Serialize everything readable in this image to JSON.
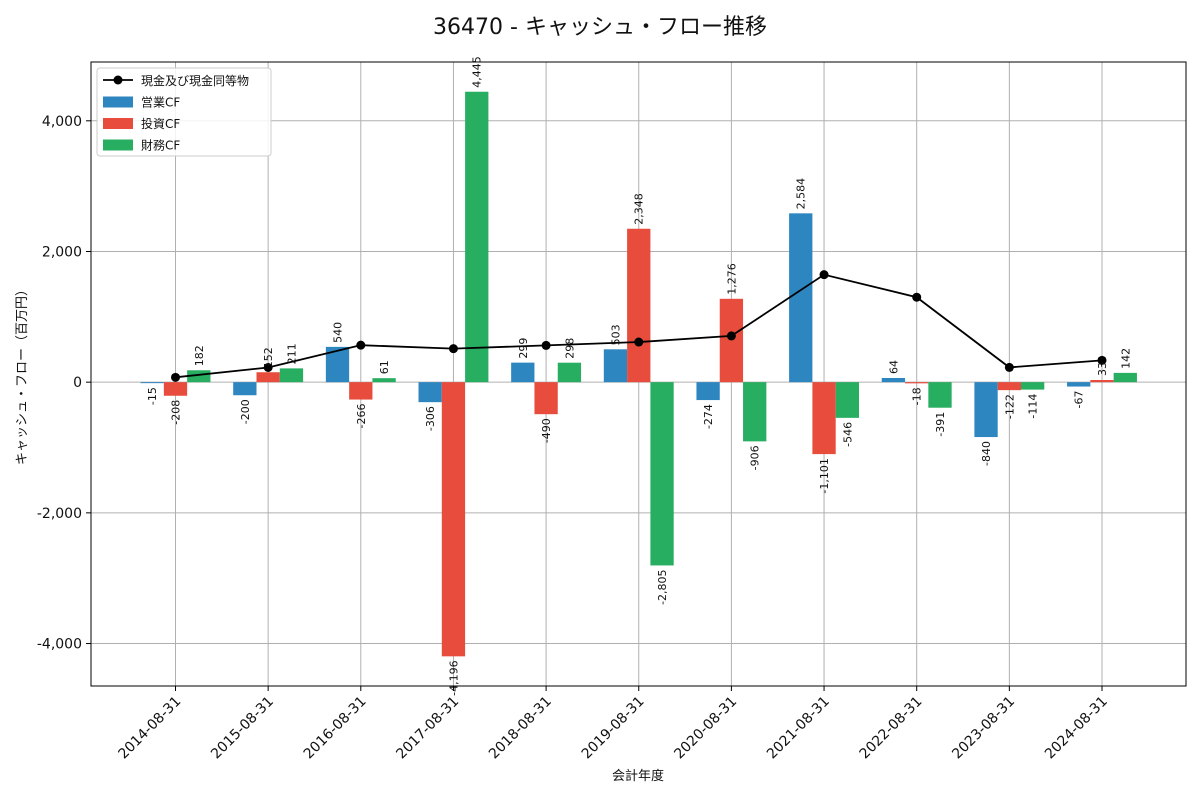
{
  "chart_data": {
    "type": "bar",
    "title": "36470 - キャッシュ・フロー推移",
    "xlabel": "会計年度",
    "ylabel": "キャッシュ・フロー（百万円）",
    "categories": [
      "2014-08-31",
      "2015-08-31",
      "2016-08-31",
      "2017-08-31",
      "2018-08-31",
      "2019-08-31",
      "2020-08-31",
      "2021-08-31",
      "2022-08-31",
      "2023-08-31",
      "2024-08-31"
    ],
    "ylim": [
      -4650,
      4900
    ],
    "yticks": [
      -4000,
      -2000,
      0,
      2000,
      4000
    ],
    "ytick_labels": [
      "-4,000",
      "-2,000",
      "0",
      "2,000",
      "4,000"
    ],
    "grid": true,
    "legend_position": "top-left",
    "series": [
      {
        "name": "営業CF",
        "kind": "bar",
        "color": "#2e86c1",
        "values": [
          -15,
          -200,
          540,
          -306,
          299,
          503,
          -274,
          2584,
          64,
          -840,
          -67
        ],
        "labels": [
          "-15",
          "-200",
          "540",
          "-306",
          "299",
          "503",
          "-274",
          "2,584",
          "64",
          "-840",
          "-67"
        ]
      },
      {
        "name": "投資CF",
        "kind": "bar",
        "color": "#e74c3c",
        "values": [
          -208,
          152,
          -266,
          -4196,
          -490,
          2348,
          1276,
          -1101,
          -18,
          -122,
          33
        ],
        "labels": [
          "-208",
          "152",
          "-266",
          "-4,196",
          "-490",
          "2,348",
          "1,276",
          "-1,101",
          "-18",
          "-122",
          "33"
        ]
      },
      {
        "name": "財務CF",
        "kind": "bar",
        "color": "#27ae60",
        "values": [
          182,
          211,
          61,
          4445,
          298,
          -2805,
          -906,
          -546,
          -391,
          -114,
          142
        ],
        "labels": [
          "182",
          "211",
          "61",
          "4,445",
          "298",
          "-2,805",
          "-906",
          "-546",
          "-391",
          "-114",
          "142"
        ]
      },
      {
        "name": "現金及び現金同等物",
        "kind": "line",
        "color": "#000000",
        "values": [
          74,
          225,
          566,
          513,
          563,
          614,
          708,
          1645,
          1300,
          226,
          334
        ]
      }
    ]
  }
}
